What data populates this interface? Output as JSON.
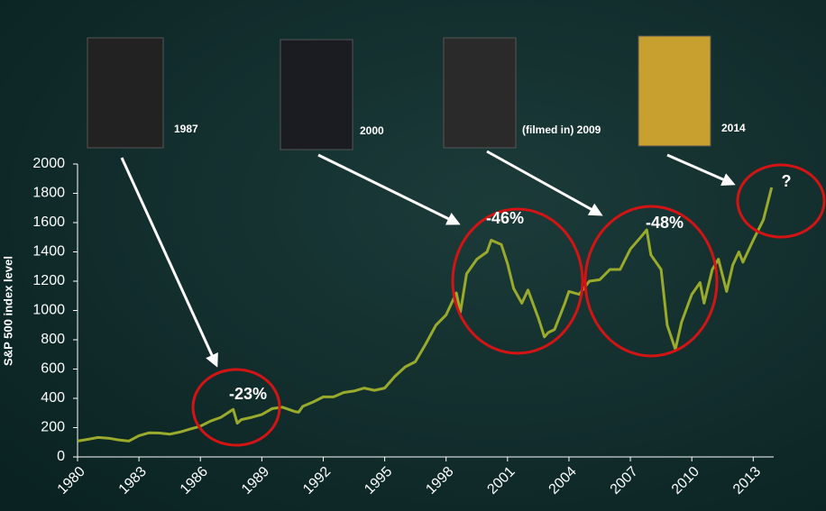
{
  "chart_data": {
    "type": "line",
    "y_label": "S&P 500 index level",
    "color": "#9aab2c",
    "x": [
      1980,
      1980.5,
      1981,
      1981.5,
      1982,
      1982.5,
      1983,
      1983.5,
      1984,
      1984.5,
      1985,
      1985.5,
      1986,
      1986.5,
      1987,
      1987.6,
      1987.8,
      1988,
      1988.5,
      1989,
      1989.5,
      1990,
      1990.6,
      1990.8,
      1991,
      1991.5,
      1992,
      1992.5,
      1993,
      1993.5,
      1994,
      1994.5,
      1995,
      1995.5,
      1996,
      1996.5,
      1997,
      1997.5,
      1998,
      1998.5,
      1998.7,
      1999,
      1999.5,
      2000,
      2000.2,
      2000.7,
      2001,
      2001.3,
      2001.7,
      2002,
      2002.5,
      2002.8,
      2003,
      2003.3,
      2003.8,
      2004,
      2004.5,
      2005,
      2005.5,
      2006,
      2006.5,
      2007,
      2007.5,
      2007.8,
      2008,
      2008.5,
      2008.8,
      2009.2,
      2009.5,
      2010,
      2010.4,
      2010.6,
      2011,
      2011.3,
      2011.7,
      2012,
      2012.3,
      2012.5,
      2013,
      2013.5,
      2013.9
    ],
    "values": [
      108,
      120,
      133,
      128,
      116,
      108,
      145,
      165,
      163,
      155,
      170,
      190,
      210,
      245,
      270,
      325,
      230,
      255,
      270,
      290,
      330,
      340,
      310,
      305,
      345,
      375,
      410,
      410,
      440,
      450,
      470,
      455,
      470,
      550,
      615,
      650,
      770,
      900,
      970,
      1120,
      990,
      1250,
      1350,
      1400,
      1480,
      1450,
      1320,
      1150,
      1050,
      1140,
      950,
      820,
      850,
      870,
      1050,
      1130,
      1110,
      1200,
      1210,
      1280,
      1280,
      1420,
      1500,
      1550,
      1380,
      1280,
      900,
      735,
      920,
      1110,
      1190,
      1050,
      1280,
      1350,
      1130,
      1310,
      1400,
      1330,
      1480,
      1620,
      1840
    ],
    "xlim": [
      1980,
      2014
    ],
    "xticks": [
      1980,
      1983,
      1986,
      1989,
      1992,
      1995,
      1998,
      2001,
      2004,
      2007,
      2010,
      2013
    ],
    "ylim": [
      0,
      2000
    ],
    "yticks": [
      0,
      200,
      400,
      600,
      800,
      1000,
      1200,
      1400,
      1600,
      1800,
      2000
    ],
    "posters": [
      "1987",
      "2000",
      "(filmed in) 2009",
      "2014"
    ],
    "annotations": [
      "-23%",
      "-46%",
      "-48%",
      "?"
    ]
  }
}
